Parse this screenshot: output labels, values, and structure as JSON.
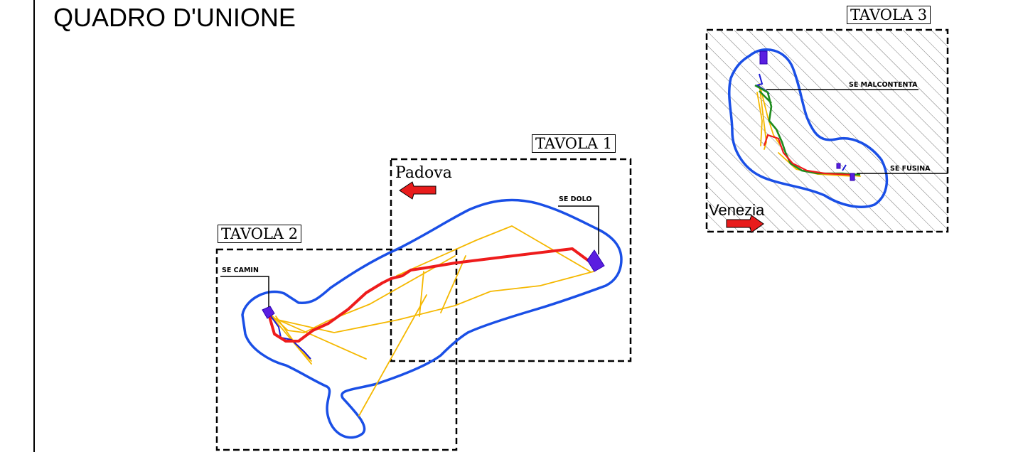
{
  "page": {
    "title": "QUADRO D'UNIONE"
  },
  "sheets": [
    {
      "id": "tavola-1",
      "label": "TAVOLA 1"
    },
    {
      "id": "tavola-2",
      "label": "TAVOLA 2"
    },
    {
      "id": "tavola-3",
      "label": "TAVOLA 3"
    }
  ],
  "cities": {
    "padova": "Padova",
    "venezia": "Venezia"
  },
  "substations": {
    "dolo": "SE DOLO",
    "camin": "SE CAMIN",
    "malcontenta": "SE MALCONTENTA",
    "fusina": "SE FUSINA"
  },
  "colors": {
    "buffer": "#1a4fe6",
    "main_route": "#ee1c1c",
    "alternative_routes": "#f5b800",
    "existing_lines": "#1a1ad6",
    "secondary_route": "#1e8c1e",
    "substation_fill": "#5a1ee0",
    "arrow": "#e81c1c"
  }
}
